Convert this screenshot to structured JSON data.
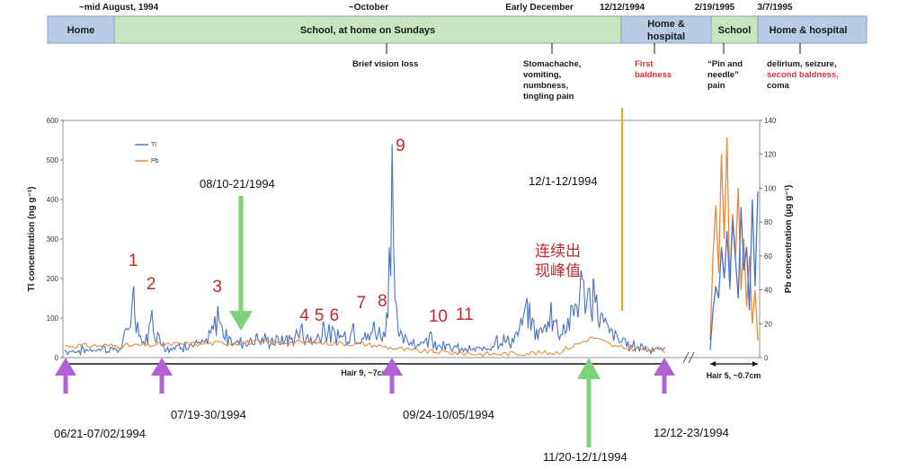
{
  "timeline": {
    "segments": [
      {
        "label": "Home",
        "color": "#b7cbe6"
      },
      {
        "label": "School, at home on Sundays",
        "color": "#c7e5bf"
      },
      {
        "label": "Home &",
        "label2": "hospital",
        "color": "#b7cbe6"
      },
      {
        "label": "School",
        "color": "#c7e5bf"
      },
      {
        "label": "Home & hospital",
        "color": "#b7cbe6"
      }
    ],
    "dates": [
      "~mid August, 1994",
      "~October",
      "Early December",
      "12/12/1994",
      "2/19/1995",
      "3/7/1995"
    ],
    "events": [
      {
        "lines": [
          "Brief vision loss"
        ],
        "color": "#1a1a1a"
      },
      {
        "lines": [
          "Stomachache,",
          "vomiting,",
          "numbness,",
          "tingling pain"
        ],
        "color": "#1a1a1a"
      },
      {
        "lines": [
          "First",
          "baldness"
        ],
        "color": "#e0303a"
      },
      {
        "lines": [
          "“Pin and",
          "needle”",
          "pain"
        ],
        "color": "#1a1a1a"
      },
      {
        "lines": [
          "delirium, seizure,",
          "second baldness,",
          "coma"
        ],
        "color": "#1a1a1a",
        "red_line": 1
      }
    ]
  },
  "chart_data": {
    "type": "line",
    "ylabel": "Tl concentration (ng g⁻¹)",
    "y2label": "Pb concentration (µg g⁻¹)",
    "ylim": [
      0,
      600
    ],
    "y2lim": [
      0,
      140
    ],
    "yticks": [
      0,
      100,
      200,
      300,
      400,
      500,
      600
    ],
    "y2ticks": [
      0,
      20,
      40,
      60,
      80,
      100,
      120,
      140
    ],
    "legend": {
      "placement": "top-left",
      "entries": [
        "Tl",
        "Pb"
      ]
    },
    "series": [
      {
        "name": "Tl",
        "color": "#4a72c4",
        "axis": "left"
      },
      {
        "name": "Pb",
        "color": "#e88a3c",
        "axis": "right"
      }
    ],
    "segments": [
      "Hair 9, ~7cm",
      "Hair 5, ~0.7cm"
    ],
    "tl_hair9_peaks": [
      {
        "pos": 0.0,
        "value": 20
      },
      {
        "pos": 0.03,
        "value": 25
      },
      {
        "pos": 0.065,
        "value": 30
      },
      {
        "pos": 0.095,
        "value": 28
      },
      {
        "pos": 0.115,
        "value": 180
      },
      {
        "pos": 0.13,
        "value": 35
      },
      {
        "pos": 0.145,
        "value": 120
      },
      {
        "pos": 0.165,
        "value": 35
      },
      {
        "pos": 0.2,
        "value": 40
      },
      {
        "pos": 0.235,
        "value": 45
      },
      {
        "pos": 0.255,
        "value": 130
      },
      {
        "pos": 0.275,
        "value": 50
      },
      {
        "pos": 0.32,
        "value": 60
      },
      {
        "pos": 0.37,
        "value": 55
      },
      {
        "pos": 0.395,
        "value": 85
      },
      {
        "pos": 0.41,
        "value": 50
      },
      {
        "pos": 0.43,
        "value": 90
      },
      {
        "pos": 0.455,
        "value": 70
      },
      {
        "pos": 0.48,
        "value": 85
      },
      {
        "pos": 0.505,
        "value": 60
      },
      {
        "pos": 0.515,
        "value": 90
      },
      {
        "pos": 0.535,
        "value": 80
      },
      {
        "pos": 0.545,
        "value": 540
      },
      {
        "pos": 0.555,
        "value": 70
      },
      {
        "pos": 0.58,
        "value": 45
      },
      {
        "pos": 0.61,
        "value": 65
      },
      {
        "pos": 0.63,
        "value": 40
      },
      {
        "pos": 0.65,
        "value": 30
      },
      {
        "pos": 0.69,
        "value": 25
      },
      {
        "pos": 0.72,
        "value": 55
      },
      {
        "pos": 0.75,
        "value": 60
      },
      {
        "pos": 0.77,
        "value": 150
      },
      {
        "pos": 0.79,
        "value": 70
      },
      {
        "pos": 0.81,
        "value": 140
      },
      {
        "pos": 0.83,
        "value": 80
      },
      {
        "pos": 0.86,
        "value": 220
      },
      {
        "pos": 0.88,
        "value": 200
      },
      {
        "pos": 0.9,
        "value": 100
      },
      {
        "pos": 0.93,
        "value": 50
      },
      {
        "pos": 0.96,
        "value": 35
      },
      {
        "pos": 1.0,
        "value": 25
      }
    ],
    "pb_hair9_profile": [
      {
        "pos": 0.0,
        "value": 7
      },
      {
        "pos": 0.1,
        "value": 7
      },
      {
        "pos": 0.2,
        "value": 8
      },
      {
        "pos": 0.3,
        "value": 9
      },
      {
        "pos": 0.4,
        "value": 9
      },
      {
        "pos": 0.5,
        "value": 8
      },
      {
        "pos": 0.58,
        "value": 4
      },
      {
        "pos": 0.7,
        "value": 2
      },
      {
        "pos": 0.82,
        "value": 3
      },
      {
        "pos": 0.88,
        "value": 12
      },
      {
        "pos": 0.92,
        "value": 6
      },
      {
        "pos": 1.0,
        "value": 4
      }
    ],
    "hair5": {
      "tl": [
        20,
        120,
        180,
        150,
        280,
        200,
        320,
        180,
        350,
        250,
        150,
        380,
        220,
        280,
        120,
        400,
        180,
        420
      ],
      "pb": [
        10,
        60,
        90,
        50,
        120,
        70,
        130,
        40,
        85,
        60,
        100,
        40,
        70,
        30,
        60,
        20,
        40,
        10
      ]
    },
    "peak_labels": [
      {
        "label": "1",
        "pos": 0.115
      },
      {
        "label": "2",
        "pos": 0.145
      },
      {
        "label": "3",
        "pos": 0.255
      },
      {
        "label": "4",
        "pos": 0.4
      },
      {
        "label": "5",
        "pos": 0.425
      },
      {
        "label": "6",
        "pos": 0.45
      },
      {
        "label": "7",
        "pos": 0.495
      },
      {
        "label": "8",
        "pos": 0.53
      },
      {
        "label": "9",
        "pos": 0.56
      },
      {
        "label": "10",
        "pos": 0.615
      },
      {
        "label": "11",
        "pos": 0.66
      }
    ],
    "annotations": {
      "green_arrows": [
        "08/10-21/1994",
        "11/20-12/1/1994"
      ],
      "purple_arrows": [
        "06/21-07/02/1994",
        "07/19-30/1994",
        "09/24-10/05/1994",
        "12/12-23/1994"
      ],
      "orange_marker": "12/1-12/1994",
      "cn_note_lines": [
        "连续出",
        "现峰值"
      ]
    }
  }
}
